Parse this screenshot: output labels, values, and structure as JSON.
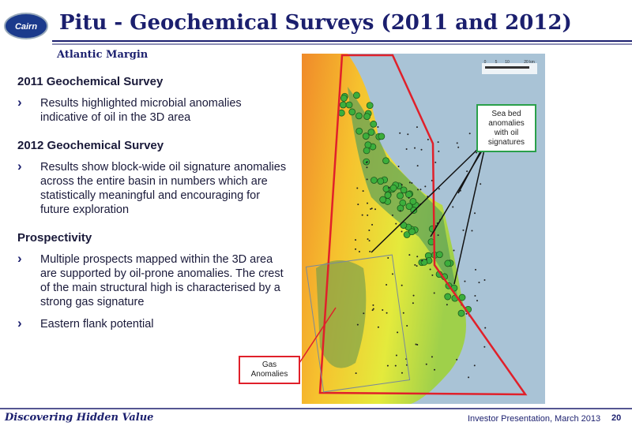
{
  "header": {
    "logo": "Cairn",
    "title": "Pitu - Geochemical Surveys (2011 and 2012)",
    "subtitle": "Atlantic Margin"
  },
  "sections": [
    {
      "heading": "2011 Geochemical Survey",
      "bullets": [
        "Results highlighted microbial anomalies indicative of oil in the 3D area"
      ]
    },
    {
      "heading": "2012 Geochemical Survey",
      "bullets": [
        "Results show block-wide oil signature anomalies across the entire basin in numbers which are statistically meaningful and encouraging for future exploration"
      ]
    },
    {
      "heading": "Prospectivity",
      "bullets": [
        "Multiple prospects mapped within the 3D area are supported by oil-prone anomalies. The crest of the main structural high is characterised by a strong gas signature",
        "Eastern flank potential"
      ]
    }
  ],
  "map": {
    "scale_labels": [
      "0",
      "5",
      "10",
      "20 km"
    ],
    "callouts": [
      {
        "lines": [
          "Sea bed",
          "anomalies",
          "with oil",
          "signatures"
        ]
      },
      {
        "lines": [
          "Gas",
          "Anomalies"
        ]
      }
    ]
  },
  "footer": {
    "tagline": "Discovering Hidden Value",
    "presentation": "Investor Presentation, March 2013",
    "page": "20"
  }
}
